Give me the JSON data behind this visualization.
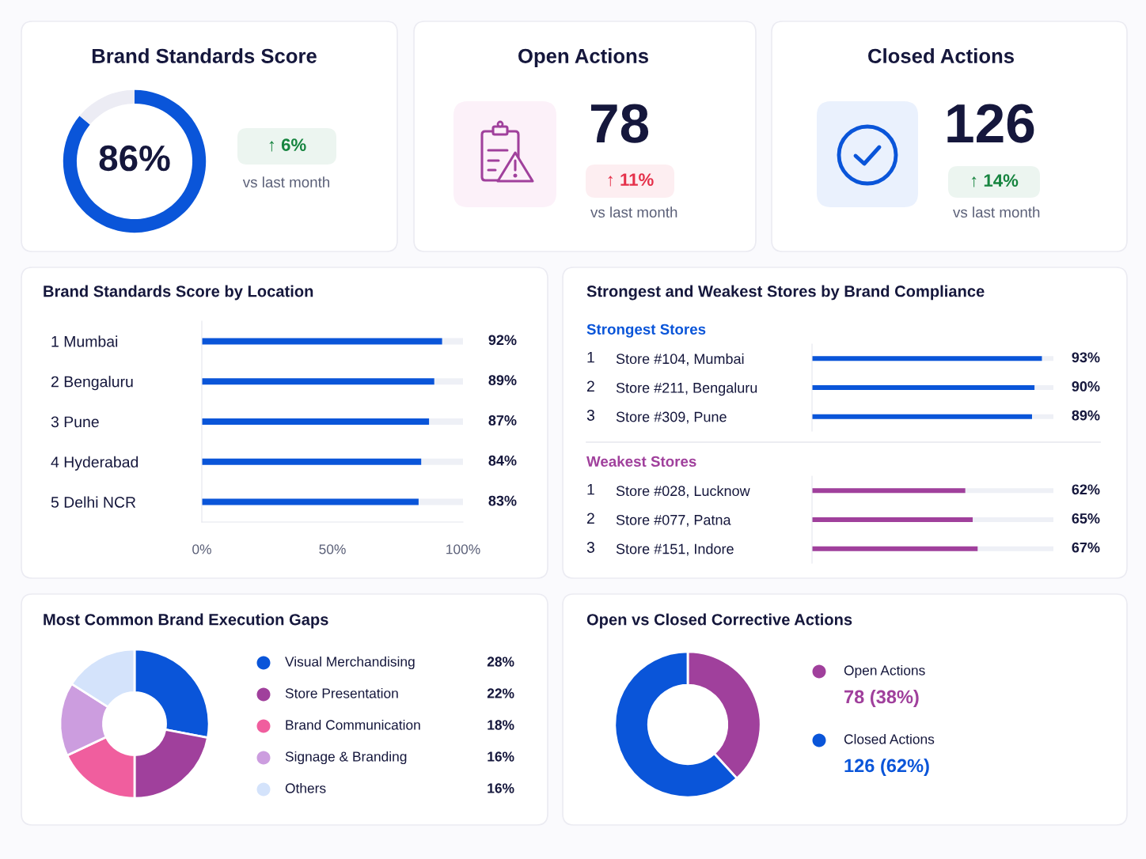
{
  "chart_data": [
    {
      "type": "donut",
      "title": "Brand Standards Score",
      "categories": [
        null,
        null
      ],
      "values": [
        86,
        14
      ],
      "colors": [
        "#0a55d9",
        "#ececf4"
      ],
      "value_labels": [
        "86%",
        null
      ],
      "annotations": [
        "↑ 6%",
        "vs last month"
      ]
    },
    {
      "type": "other",
      "title": "Open Actions",
      "color": "#e5304a",
      "annotations": [
        "78",
        "↑ 11%",
        "vs last month"
      ]
    },
    {
      "type": "other",
      "title": "Closed Actions",
      "color": "#16843f",
      "annotations": [
        "126",
        "↑ 14%",
        "vs last month"
      ]
    },
    {
      "type": "bar",
      "orientation": "horizontal",
      "title": "Brand Standards Score by Location",
      "categories": [
        "1 Mumbai",
        "2 Bengaluru",
        "3 Pune",
        "4 Hyderabad",
        "5 Delhi NCR"
      ],
      "values": [
        92,
        89,
        87,
        84,
        83
      ],
      "color": "#0a55d9",
      "value_labels": [
        "92%",
        "89%",
        "87%",
        "84%",
        "83%"
      ],
      "xlim": [
        0,
        100
      ],
      "xticks": [
        {
          "value": 0,
          "label": "0%"
        },
        {
          "value": 50,
          "label": "50%"
        },
        {
          "value": 100,
          "label": "100%"
        }
      ]
    },
    {
      "type": "bar",
      "orientation": "horizontal",
      "title": "Strongest and Weakest Stores by Brand Compliance",
      "subtitle": "Strongest Stores",
      "categories": [
        "Store #104, Mumbai",
        "Store #211, Bengaluru",
        "Store #309, Pune"
      ],
      "values": [
        93,
        90,
        89
      ],
      "color": "#0a55d9",
      "value_labels": [
        "93%",
        "90%",
        "89%"
      ],
      "tick_labels": "y",
      "annotations": [
        "1",
        "2",
        "3"
      ]
    },
    {
      "type": "bar",
      "orientation": "horizontal",
      "subtitle": "Weakest Stores",
      "categories": [
        "Store #028, Lucknow",
        "Store #077, Patna",
        "Store #151, Indore"
      ],
      "values": [
        62,
        65,
        67
      ],
      "color": "#a0409c",
      "value_labels": [
        "62%",
        "65%",
        "67%"
      ],
      "tick_labels": "y",
      "annotations": [
        "1",
        "2",
        "3"
      ]
    },
    {
      "type": "donut",
      "title": "Most Common Brand Execution Gaps",
      "categories": [
        "Visual Merchandising",
        "Store Presentation",
        "Brand Communication",
        "Signage & Branding",
        "Others"
      ],
      "values": [
        28,
        22,
        18,
        16,
        16
      ],
      "colors": [
        "#0a55d9",
        "#a0409c",
        "#f05e9e",
        "#cc9ddf",
        "#d4e3fb"
      ],
      "value_labels": [
        "28%",
        "22%",
        "18%",
        "16%",
        "16%"
      ],
      "legend": "right"
    },
    {
      "type": "donut",
      "title": "Open vs Closed Corrective Actions",
      "categories": [
        "Open Actions",
        "Closed Actions"
      ],
      "values": [
        78,
        126
      ],
      "colors": [
        "#a0409c",
        "#0a55d9"
      ],
      "value_labels": [
        "78 (38%)",
        "126 (62%)"
      ],
      "legend": "right"
    }
  ]
}
